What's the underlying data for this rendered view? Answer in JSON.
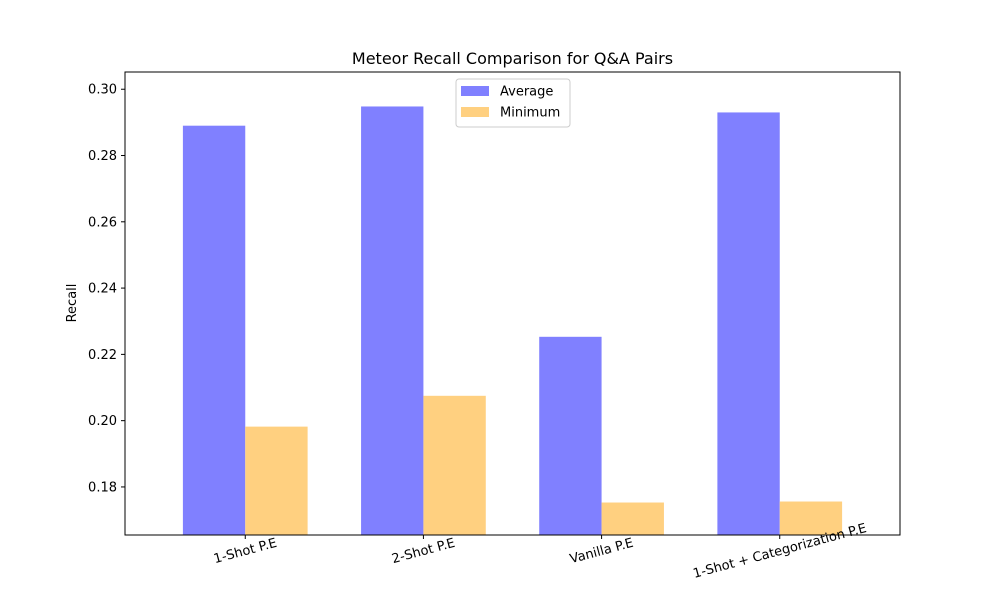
{
  "chart_data": {
    "type": "bar",
    "title": "Meteor Recall Comparison for Q&A Pairs",
    "xlabel": "",
    "ylabel": "Recall",
    "categories": [
      "1-Shot P.E",
      "2-Shot P.E",
      "Vanilla P.E",
      "1-Shot + Categorization P.E"
    ],
    "series": [
      {
        "name": "Average",
        "values": [
          0.289,
          0.2948,
          0.2253,
          0.293
        ],
        "color": "#8080ff"
      },
      {
        "name": "Minimum",
        "values": [
          0.1982,
          0.2075,
          0.1753,
          0.1756
        ],
        "color": "#ffd080"
      }
    ],
    "ylim": [
      0.1655,
      0.3052
    ],
    "yticks": [
      0.18,
      0.2,
      0.22,
      0.24,
      0.26,
      0.28,
      0.3
    ],
    "ytick_labels": [
      "0.18",
      "0.20",
      "0.22",
      "0.24",
      "0.26",
      "0.28",
      "0.30"
    ],
    "xtick_rotation": -15,
    "legend_position": "top-center",
    "grid": false
  }
}
